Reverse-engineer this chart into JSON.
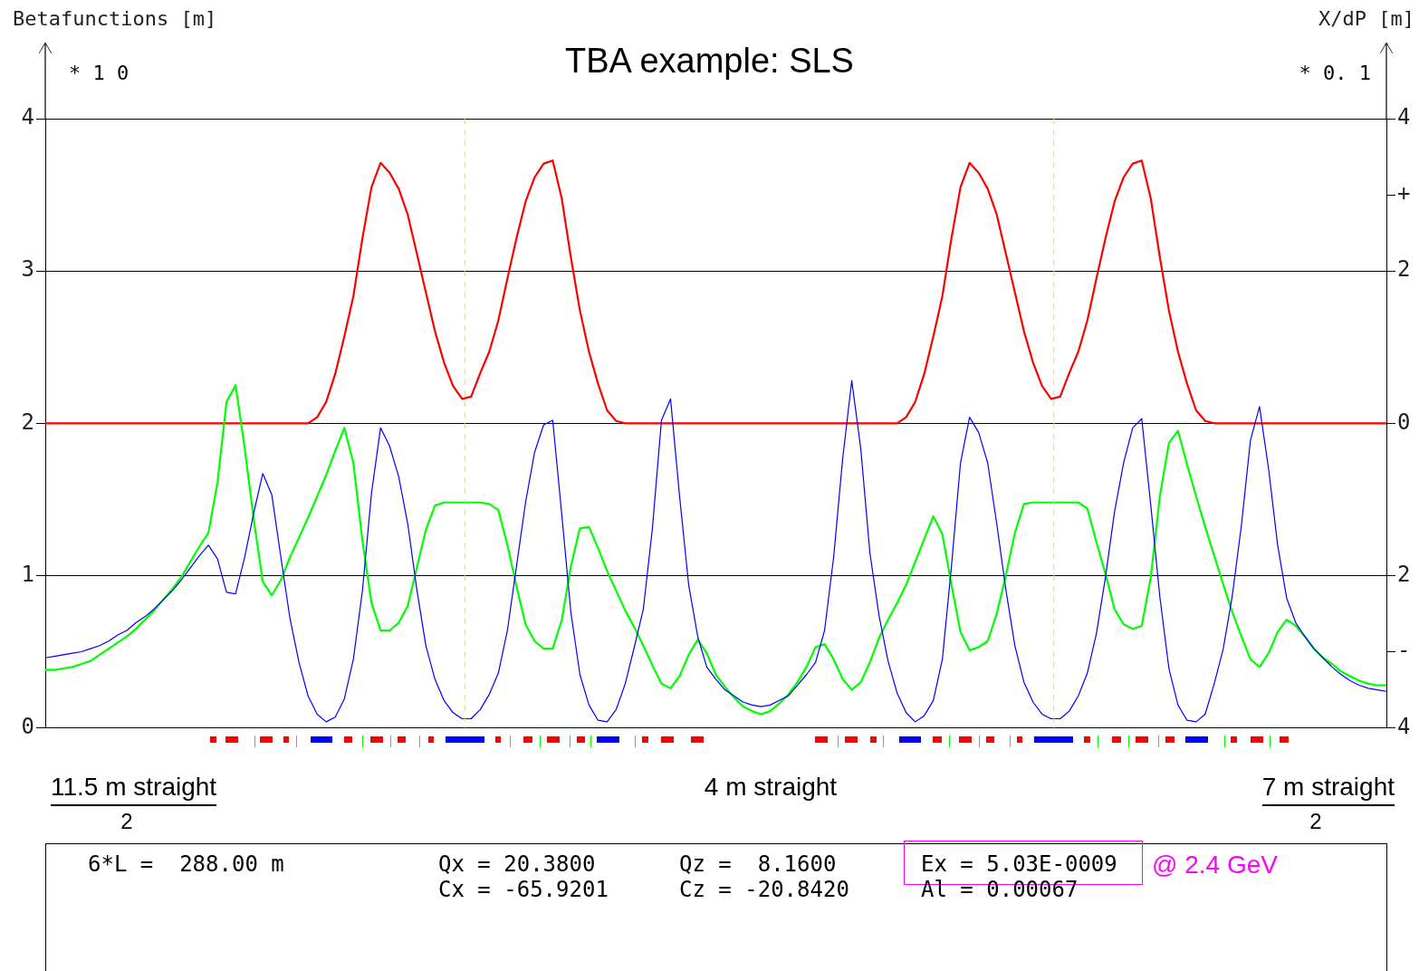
{
  "chart_data": {
    "type": "line",
    "title": "TBA example: SLS",
    "ylabel": "Betafunctions [m]",
    "y2label": "X/dP [m]",
    "categories": [
      null,
      null,
      null,
      null,
      null,
      null,
      null,
      null,
      null,
      null,
      null,
      null,
      null,
      null,
      null,
      null,
      null,
      null,
      null,
      null,
      null,
      null,
      null,
      null,
      null,
      null,
      null,
      null,
      null,
      null,
      null,
      null,
      null,
      null,
      null,
      null,
      null,
      null,
      null,
      null,
      null,
      null,
      null,
      null,
      null,
      null,
      null,
      null,
      null,
      null,
      null,
      null,
      null,
      null,
      null,
      null,
      null,
      null,
      null,
      null,
      null,
      null,
      null,
      null,
      null,
      null,
      null,
      null,
      null,
      null,
      null,
      null,
      null,
      null,
      null,
      null,
      null,
      null,
      null,
      null,
      null,
      null,
      null,
      null,
      null,
      null,
      null,
      null,
      null,
      null,
      null,
      null,
      null,
      null,
      null,
      null,
      null,
      null,
      null,
      null,
      null,
      null,
      null,
      null,
      null,
      null,
      null,
      null,
      null,
      null,
      null,
      null,
      null,
      null,
      null,
      null,
      null,
      null,
      null,
      null,
      null,
      null,
      null,
      null,
      null,
      null,
      null,
      null,
      null,
      null,
      null,
      null,
      null,
      null,
      null,
      null,
      null,
      null,
      null,
      null,
      null,
      null,
      null,
      null,
      null,
      null,
      null,
      null,
      null
    ],
    "series": [
      {
        "color": "#0000ff",
        "values": [
          0.46,
          0.47,
          0.48,
          0.49,
          0.5,
          0.52,
          0.54,
          0.57,
          0.61,
          0.64,
          0.69,
          0.73,
          0.78,
          0.84,
          0.9,
          0.97,
          1.05,
          1.13,
          1.2,
          1.11,
          0.89,
          0.88,
          1.12,
          1.41,
          1.67,
          1.53,
          1.12,
          0.72,
          0.43,
          0.21,
          0.09,
          0.04,
          0.07,
          0.19,
          0.45,
          0.9,
          1.54,
          1.97,
          1.85,
          1.65,
          1.34,
          0.91,
          0.54,
          0.32,
          0.18,
          0.1,
          0.06,
          0.06,
          0.12,
          0.22,
          0.36,
          0.64,
          1.06,
          1.48,
          1.81,
          1.99,
          2.02,
          1.4,
          0.76,
          0.35,
          0.15,
          0.05,
          0.04,
          0.12,
          0.29,
          0.53,
          0.78,
          1.31,
          2.02,
          2.16,
          1.52,
          0.94,
          0.6,
          0.4,
          0.32,
          0.25,
          0.21,
          0.17,
          0.15,
          0.14,
          0.15,
          0.18,
          0.21,
          0.28,
          0.35,
          0.43,
          0.64,
          1.12,
          1.77,
          2.28,
          1.83,
          1.15,
          0.74,
          0.44,
          0.23,
          0.1,
          0.04,
          0.08,
          0.18,
          0.45,
          1.06,
          1.74,
          2.04,
          1.94,
          1.74,
          1.34,
          0.91,
          0.54,
          0.3,
          0.17,
          0.09,
          0.06,
          0.06,
          0.11,
          0.21,
          0.36,
          0.62,
          0.99,
          1.42,
          1.74,
          1.97,
          2.03,
          1.46,
          0.86,
          0.39,
          0.15,
          0.05,
          0.04,
          0.09,
          0.29,
          0.52,
          0.87,
          1.33,
          1.89,
          2.11,
          1.7,
          1.2,
          0.85,
          0.69,
          0.6,
          0.52,
          0.46,
          0.4,
          0.35,
          0.31,
          0.28,
          0.26,
          0.25,
          0.24
        ]
      },
      {
        "color": "#00ff00",
        "values": [
          0.38,
          0.38,
          0.39,
          0.4,
          0.42,
          0.44,
          0.48,
          0.52,
          0.56,
          0.6,
          0.65,
          0.71,
          0.77,
          0.84,
          0.91,
          0.99,
          1.09,
          1.19,
          1.28,
          1.61,
          2.14,
          2.25,
          1.84,
          1.37,
          0.96,
          0.87,
          0.97,
          1.12,
          1.25,
          1.38,
          1.52,
          1.66,
          1.82,
          1.97,
          1.74,
          1.23,
          0.82,
          0.64,
          0.64,
          0.69,
          0.8,
          1.05,
          1.3,
          1.46,
          1.48,
          1.48,
          1.48,
          1.48,
          1.48,
          1.47,
          1.43,
          1.2,
          0.93,
          0.68,
          0.57,
          0.52,
          0.52,
          0.71,
          1.06,
          1.31,
          1.32,
          1.18,
          1.03,
          0.9,
          0.77,
          0.66,
          0.54,
          0.41,
          0.29,
          0.26,
          0.34,
          0.48,
          0.58,
          0.49,
          0.35,
          0.27,
          0.2,
          0.14,
          0.11,
          0.09,
          0.11,
          0.16,
          0.22,
          0.3,
          0.4,
          0.53,
          0.55,
          0.45,
          0.32,
          0.25,
          0.3,
          0.43,
          0.59,
          0.71,
          0.82,
          0.94,
          1.09,
          1.24,
          1.39,
          1.27,
          0.94,
          0.63,
          0.51,
          0.53,
          0.57,
          0.75,
          1.0,
          1.28,
          1.47,
          1.48,
          1.48,
          1.48,
          1.48,
          1.48,
          1.48,
          1.44,
          1.22,
          1.01,
          0.78,
          0.68,
          0.65,
          0.67,
          0.99,
          1.52,
          1.87,
          1.95,
          1.73,
          1.52,
          1.32,
          1.13,
          0.94,
          0.76,
          0.6,
          0.45,
          0.4,
          0.49,
          0.63,
          0.71,
          0.67,
          0.6,
          0.52,
          0.46,
          0.42,
          0.37,
          0.34,
          0.31,
          0.29,
          0.28,
          0.28
        ]
      },
      {
        "color": "#ff0000",
        "axis": "y2",
        "values": [
          0,
          0,
          0,
          0,
          0,
          0,
          0,
          0,
          0,
          0,
          0,
          0,
          0,
          0,
          0,
          0,
          0,
          0,
          0,
          0,
          0,
          0,
          0,
          0,
          0,
          0,
          0,
          0,
          0,
          0,
          0.08,
          0.28,
          0.65,
          1.14,
          1.67,
          2.43,
          3.1,
          3.42,
          3.29,
          3.08,
          2.74,
          2.23,
          1.72,
          1.21,
          0.8,
          0.49,
          0.32,
          0.35,
          0.66,
          0.94,
          1.35,
          1.9,
          2.43,
          2.91,
          3.23,
          3.41,
          3.45,
          2.95,
          2.18,
          1.48,
          0.94,
          0.52,
          0.17,
          0.03,
          0,
          0,
          0,
          0,
          0,
          0,
          0,
          0,
          0,
          0,
          0,
          0,
          0,
          0,
          0,
          0,
          0,
          0,
          0,
          0,
          0,
          0,
          0,
          0,
          0,
          0,
          0,
          0,
          0,
          0,
          0,
          0.08,
          0.28,
          0.65,
          1.14,
          1.67,
          2.43,
          3.1,
          3.42,
          3.29,
          3.08,
          2.74,
          2.23,
          1.72,
          1.21,
          0.8,
          0.49,
          0.32,
          0.35,
          0.66,
          0.94,
          1.35,
          1.9,
          2.43,
          2.91,
          3.23,
          3.41,
          3.45,
          2.95,
          2.18,
          1.48,
          0.94,
          0.52,
          0.17,
          0.03,
          0,
          0,
          0,
          0,
          0,
          0,
          0,
          0,
          0,
          0,
          0,
          0,
          0,
          0,
          0,
          0,
          0,
          0,
          0,
          0
        ]
      }
    ],
    "ylim": [
      0,
      4
    ],
    "yticks": [
      0,
      1,
      2,
      3,
      4
    ],
    "y2lim": [
      -4,
      4
    ],
    "y2ticks": [
      {
        "value": -4,
        "label": "4"
      },
      {
        "value": -3,
        "label": "-"
      },
      {
        "value": -2,
        "label": "2"
      },
      0,
      2,
      {
        "value": 3,
        "label": "+"
      },
      4
    ],
    "grid": "y",
    "legend": false,
    "tick_labels": "y",
    "annotations": [
      "* 1 0",
      "* 0. 1",
      "11.5 m straight",
      "2",
      "4 m straight",
      "7 m straight",
      "2",
      "6*L =  288.00 m",
      "Qx = 20.3800",
      "Cx = -65.9201",
      "Qz =  8.1600",
      "Cz = -20.8420",
      "Ex = 5.03E-0009",
      "Al = 0.00067",
      "@ 2.4 GeV"
    ]
  }
}
